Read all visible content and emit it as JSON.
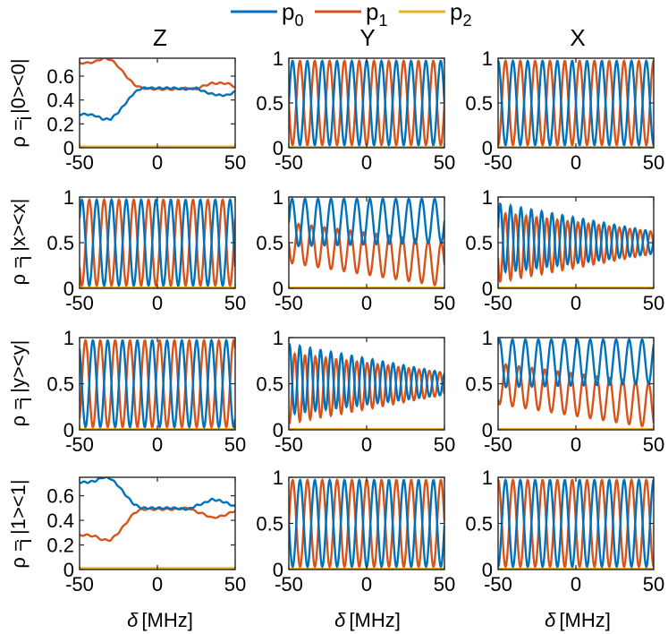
{
  "figure": {
    "column_titles": [
      "Z",
      "Y",
      "X"
    ],
    "row_labels": [
      "ρ  = |0><0|",
      "ρ  = |x><x|",
      "ρ  = |y><y|",
      "ρ  = |1><1|"
    ],
    "row_label_subscript": "i",
    "xlabel_symbol": "δ",
    "xlabel_unit": "[MHz]"
  },
  "legend": {
    "entries": [
      {
        "name": "p",
        "sub": "0",
        "color": "#0072BD"
      },
      {
        "name": "p",
        "sub": "1",
        "color": "#D95319"
      },
      {
        "name": "p",
        "sub": "2",
        "color": "#EDB120"
      }
    ]
  },
  "chart_data": {
    "type": "line",
    "description": "Populations p0, p1, p2 versus detuning for 4 initial states (rows) and 3 measurement bases (columns)",
    "xlim": [
      -50,
      50
    ],
    "xticks": [
      -50,
      0,
      50
    ],
    "xlabel": "δ [MHz]",
    "columns": [
      "Z",
      "Y",
      "X"
    ],
    "rows": [
      "|0><0|",
      "|x><x|",
      "|y><y|",
      "|1><1|"
    ],
    "panels": [
      {
        "row": 0,
        "col": 0,
        "ylim": [
          0,
          0.75
        ],
        "yticks": [
          0,
          0.2,
          0.4,
          0.6
        ],
        "mode": "z",
        "series": [
          {
            "name": "p0",
            "x": [
              -50,
              -45,
              -40,
              -35,
              -30,
              -25,
              -20,
              -15,
              -10,
              0,
              10,
              20,
              25,
              30,
              35,
              40,
              45,
              50
            ],
            "y": [
              0.28,
              0.28,
              0.27,
              0.24,
              0.24,
              0.3,
              0.38,
              0.46,
              0.5,
              0.5,
              0.5,
              0.49,
              0.5,
              0.47,
              0.45,
              0.44,
              0.44,
              0.47
            ]
          },
          {
            "name": "p1",
            "x": [
              -50,
              -45,
              -40,
              -35,
              -30,
              -25,
              -20,
              -15,
              -10,
              0,
              10,
              20,
              25,
              30,
              35,
              40,
              45,
              50
            ],
            "y": [
              0.71,
              0.71,
              0.72,
              0.75,
              0.74,
              0.68,
              0.6,
              0.53,
              0.5,
              0.49,
              0.49,
              0.5,
              0.49,
              0.52,
              0.54,
              0.54,
              0.54,
              0.51
            ]
          },
          {
            "name": "p2",
            "value": 0.01
          }
        ]
      },
      {
        "row": 0,
        "col": 1,
        "ylim": [
          0,
          1
        ],
        "yticks": [
          0,
          0.5,
          1
        ],
        "mode": "osc",
        "cycles": 10.5,
        "p0_center": 0.5,
        "p0_amp": 0.47,
        "p1_center": 0.5,
        "p1_amp": 0.47,
        "phase": 0
      },
      {
        "row": 0,
        "col": 2,
        "ylim": [
          0,
          1
        ],
        "yticks": [
          0,
          0.5,
          1
        ],
        "mode": "osc",
        "cycles": 10.5,
        "p0_center": 0.5,
        "p0_amp": 0.47,
        "p1_center": 0.5,
        "p1_amp": 0.47,
        "phase": 1.57
      },
      {
        "row": 1,
        "col": 0,
        "ylim": [
          0,
          1
        ],
        "yticks": [
          0,
          0.5,
          1
        ],
        "mode": "osc",
        "cycles": 10.5,
        "p0_center": 0.5,
        "p0_amp": 0.47,
        "p1_center": 0.5,
        "p1_amp": 0.47,
        "phase": 0.6
      },
      {
        "row": 1,
        "col": 1,
        "ylim": [
          0,
          1
        ],
        "yticks": [
          0,
          0.5,
          1
        ],
        "mode": "osc",
        "cycles": 12,
        "p0_center_start": 0.72,
        "p0_center_end": 0.74,
        "p0_amp_start": 0.26,
        "p0_amp_end": 0.24,
        "p1_center_start": 0.5,
        "p1_center_end": 0.26,
        "p1_amp_start": 0.22,
        "p1_amp_end": 0.24,
        "phase": 0
      },
      {
        "row": 1,
        "col": 2,
        "ylim": [
          0,
          1
        ],
        "yticks": [
          0,
          0.5,
          1
        ],
        "mode": "osc",
        "cycles": 15,
        "p0_center_start": 0.55,
        "p0_center_end": 0.5,
        "p0_amp_start": 0.38,
        "p0_amp_end": 0.12,
        "p1_center_start": 0.45,
        "p1_center_end": 0.5,
        "p1_amp_start": 0.38,
        "p1_amp_end": 0.12,
        "phase": 0.3
      },
      {
        "row": 2,
        "col": 0,
        "ylim": [
          0,
          1
        ],
        "yticks": [
          0,
          0.5,
          1
        ],
        "mode": "osc",
        "cycles": 10.5,
        "p0_center": 0.5,
        "p0_amp": 0.47,
        "p1_center": 0.5,
        "p1_amp": 0.47,
        "phase": 2.2
      },
      {
        "row": 2,
        "col": 1,
        "ylim": [
          0,
          1
        ],
        "yticks": [
          0,
          0.5,
          1
        ],
        "mode": "osc",
        "cycles": 15,
        "p0_center_start": 0.55,
        "p0_center_end": 0.5,
        "p0_amp_start": 0.38,
        "p0_amp_end": 0.12,
        "p1_center_start": 0.45,
        "p1_center_end": 0.5,
        "p1_amp_start": 0.38,
        "p1_amp_end": 0.12,
        "phase": 1.2
      },
      {
        "row": 2,
        "col": 2,
        "ylim": [
          0,
          1
        ],
        "yticks": [
          0,
          0.5,
          1
        ],
        "mode": "osc",
        "cycles": 12,
        "p0_center_start": 0.72,
        "p0_center_end": 0.74,
        "p0_amp_start": 0.26,
        "p0_amp_end": 0.24,
        "p1_center_start": 0.5,
        "p1_center_end": 0.26,
        "p1_amp_start": 0.22,
        "p1_amp_end": 0.24,
        "phase": 0.9
      },
      {
        "row": 3,
        "col": 0,
        "ylim": [
          0,
          0.75
        ],
        "yticks": [
          0,
          0.2,
          0.4,
          0.6
        ],
        "mode": "z",
        "series": [
          {
            "name": "p0",
            "x": [
              -50,
              -45,
              -40,
              -35,
              -30,
              -25,
              -20,
              -15,
              -10,
              0,
              10,
              20,
              25,
              30,
              35,
              40,
              45,
              50
            ],
            "y": [
              0.71,
              0.71,
              0.72,
              0.75,
              0.74,
              0.68,
              0.6,
              0.53,
              0.5,
              0.5,
              0.5,
              0.49,
              0.52,
              0.54,
              0.57,
              0.56,
              0.54,
              0.51
            ]
          },
          {
            "name": "p1",
            "x": [
              -50,
              -45,
              -40,
              -35,
              -30,
              -25,
              -20,
              -15,
              -10,
              0,
              10,
              20,
              25,
              30,
              35,
              40,
              45,
              50
            ],
            "y": [
              0.28,
              0.28,
              0.27,
              0.24,
              0.24,
              0.3,
              0.38,
              0.46,
              0.49,
              0.49,
              0.49,
              0.5,
              0.47,
              0.45,
              0.42,
              0.43,
              0.45,
              0.48
            ]
          },
          {
            "name": "p2",
            "value": 0.01
          }
        ]
      },
      {
        "row": 3,
        "col": 1,
        "ylim": [
          0,
          1
        ],
        "yticks": [
          0,
          0.5,
          1
        ],
        "mode": "osc",
        "cycles": 10.5,
        "p0_center": 0.5,
        "p0_amp": 0.47,
        "p1_center": 0.5,
        "p1_amp": 0.47,
        "phase": 3.1
      },
      {
        "row": 3,
        "col": 2,
        "ylim": [
          0,
          1
        ],
        "yticks": [
          0,
          0.5,
          1
        ],
        "mode": "osc",
        "cycles": 10.5,
        "p0_center": 0.5,
        "p0_amp": 0.47,
        "p1_center": 0.5,
        "p1_amp": 0.47,
        "phase": 4.7
      }
    ]
  }
}
